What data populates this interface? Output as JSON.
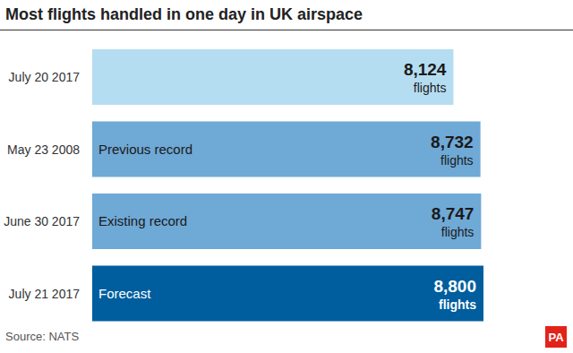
{
  "chart_data": {
    "type": "bar",
    "orientation": "horizontal",
    "title": "Most flights handled in one day in UK airspace",
    "categories": [
      "July 20 2017",
      "May 23 2008",
      "June 30 2017",
      "July 21 2017"
    ],
    "values": [
      8124,
      8732,
      8747,
      8800
    ],
    "value_labels": [
      "8,124 flights",
      "8,732 flights",
      "8,747 flights",
      "8,800 flights"
    ],
    "data_labels": true,
    "colors": [
      "#b5ddf1",
      "#6fa9d6",
      "#6fa9d6",
      "#005e9e"
    ],
    "annotations": [
      {
        "category": "May 23 2008",
        "text": "Previous record"
      },
      {
        "category": "June 30 2017",
        "text": "Existing record"
      },
      {
        "category": "July 21 2017",
        "text": "Forecast"
      }
    ],
    "xlim": [
      0,
      8800
    ],
    "tick_labels": "y",
    "grid": false,
    "source": "Source: NATS",
    "logo": "PA"
  }
}
